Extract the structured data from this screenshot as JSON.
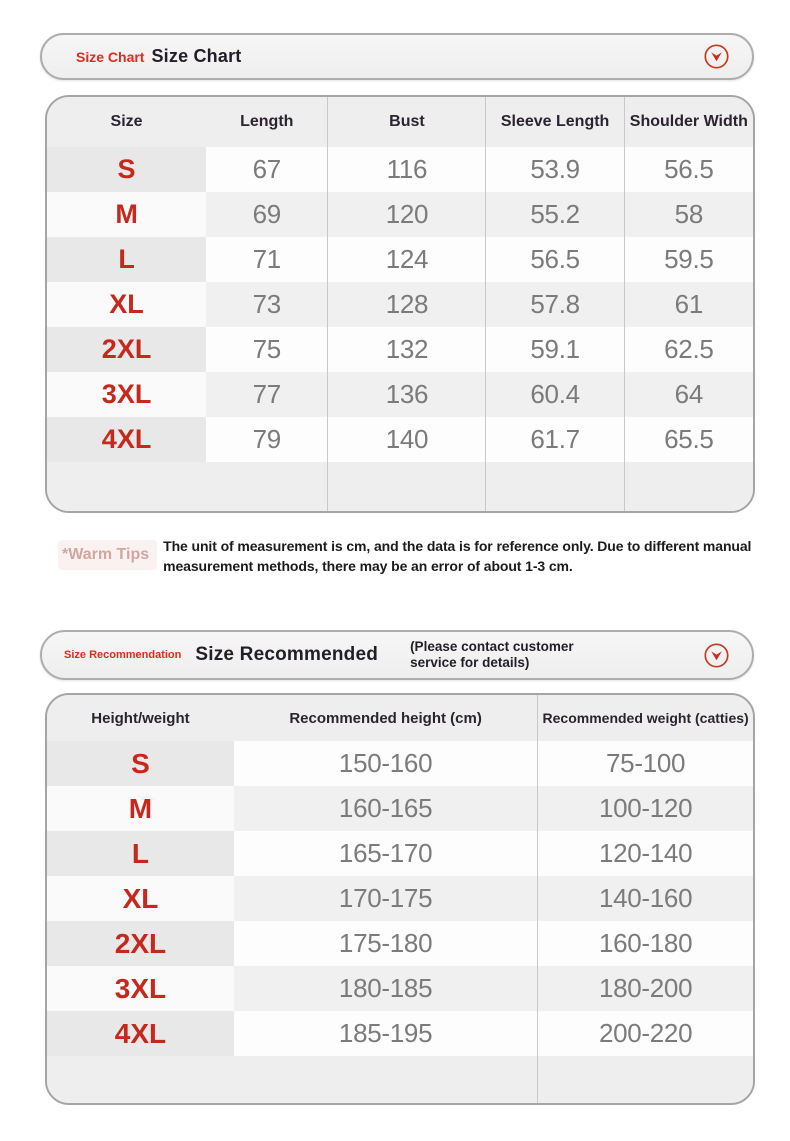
{
  "size_chart": {
    "tag": "Size Chart",
    "title": "Size Chart",
    "columns": [
      "Size",
      "Length",
      "Bust",
      "Sleeve Length",
      "Shoulder Width"
    ],
    "rows": [
      {
        "size": "S",
        "values": [
          "67",
          "116",
          "53.9",
          "56.5"
        ]
      },
      {
        "size": "M",
        "values": [
          "69",
          "120",
          "55.2",
          "58"
        ]
      },
      {
        "size": "L",
        "values": [
          "71",
          "124",
          "56.5",
          "59.5"
        ]
      },
      {
        "size": "XL",
        "values": [
          "73",
          "128",
          "57.8",
          "61"
        ]
      },
      {
        "size": "2XL",
        "values": [
          "75",
          "132",
          "59.1",
          "62.5"
        ]
      },
      {
        "size": "3XL",
        "values": [
          "77",
          "136",
          "60.4",
          "64"
        ]
      },
      {
        "size": "4XL",
        "values": [
          "79",
          "140",
          "61.7",
          "65.5"
        ]
      }
    ]
  },
  "warm_tips": {
    "label": "*Warm Tips",
    "text": "The unit of measurement is cm, and the data is for reference only. Due to different manual measurement methods, there may be an error of about 1-3 cm."
  },
  "size_recommendation": {
    "tag": "Size Recommendation",
    "title": "Size Recommended",
    "subtitle": "(Please contact customer service for details)",
    "columns": [
      "Height/weight",
      "Recommended height (cm)",
      "Recommended weight (catties)"
    ],
    "rows": [
      {
        "size": "S",
        "values": [
          "150-160",
          "75-100"
        ]
      },
      {
        "size": "M",
        "values": [
          "160-165",
          "100-120"
        ]
      },
      {
        "size": "L",
        "values": [
          "165-170",
          "120-140"
        ]
      },
      {
        "size": "XL",
        "values": [
          "170-175",
          "140-160"
        ]
      },
      {
        "size": "2XL",
        "values": [
          "175-180",
          "160-180"
        ]
      },
      {
        "size": "3XL",
        "values": [
          "180-185",
          "180-200"
        ]
      },
      {
        "size": "4XL",
        "values": [
          "185-195",
          "200-220"
        ]
      }
    ]
  },
  "colors": {
    "accent_red": "#e02a1f",
    "size_label_red": "#c5281c",
    "value_gray": "#7b7b7b",
    "header_text": "#2b2430",
    "warm_tips_pink": "#d0a6a1",
    "stripe_gray": "#efeeee"
  },
  "icons": {
    "chevron_down_circle": "chevron-down-circle-icon"
  }
}
